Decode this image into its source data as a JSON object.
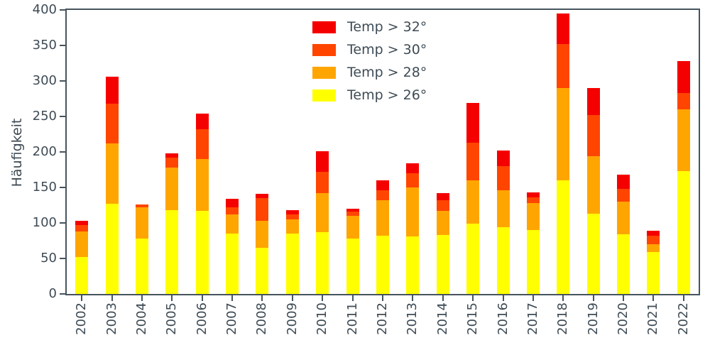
{
  "chart_data": {
    "type": "bar",
    "stacked": true,
    "title": "",
    "xlabel": "",
    "ylabel": "Häufigkeit",
    "ylim": [
      0,
      400
    ],
    "yticks": [
      0,
      50,
      100,
      150,
      200,
      250,
      300,
      350,
      400
    ],
    "grid": false,
    "legend_position": "upper center-left inside plot",
    "categories": [
      "2002",
      "2003",
      "2004",
      "2005",
      "2006",
      "2007",
      "2008",
      "2009",
      "2010",
      "2011",
      "2012",
      "2013",
      "2014",
      "2015",
      "2016",
      "2017",
      "2018",
      "2019",
      "2020",
      "2021",
      "2022"
    ],
    "series": [
      {
        "name": "Temp > 26°",
        "color": "#ffff00",
        "values": [
          52,
          127,
          78,
          118,
          117,
          85,
          65,
          85,
          87,
          78,
          82,
          81,
          83,
          99,
          94,
          90,
          160,
          113,
          84,
          59,
          173
        ]
      },
      {
        "name": "Temp > 28°",
        "color": "#ffa500",
        "values": [
          36,
          85,
          44,
          60,
          73,
          27,
          38,
          20,
          55,
          32,
          50,
          69,
          34,
          61,
          52,
          38,
          130,
          81,
          46,
          11,
          87
        ]
      },
      {
        "name": "Temp > 30°",
        "color": "#ff4500",
        "values": [
          9,
          56,
          4,
          14,
          42,
          10,
          32,
          7,
          30,
          6,
          14,
          20,
          15,
          53,
          34,
          8,
          62,
          58,
          18,
          12,
          23
        ]
      },
      {
        "name": "Temp > 32°",
        "color": "#f50000",
        "values": [
          6,
          38,
          0,
          6,
          22,
          12,
          6,
          6,
          29,
          4,
          14,
          14,
          10,
          56,
          22,
          7,
          43,
          38,
          20,
          7,
          45
        ]
      }
    ],
    "totals": [
      103,
      306,
      126,
      198,
      254,
      134,
      141,
      118,
      201,
      120,
      160,
      184,
      142,
      269,
      202,
      143,
      395,
      290,
      168,
      89,
      328
    ]
  },
  "colors": {
    "background": "#ffffff",
    "text": "#3e4b55",
    "spine": "#46545e"
  }
}
